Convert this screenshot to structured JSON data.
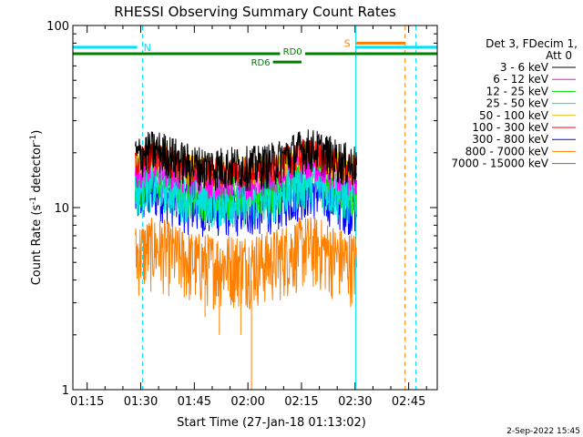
{
  "chart_data": {
    "type": "line",
    "title": "RHESSI Observing Summary Count Rates",
    "xlabel": "Start Time (27-Jan-18 01:13:02)",
    "ylabel_main": "Count Rate (s",
    "ylabel_sup": "-1",
    "ylabel_tail": " detector",
    "ylabel_sup2": "-1",
    "ylabel_close": ")",
    "ylim": [
      1,
      100
    ],
    "yscale": "log",
    "yticks": [
      {
        "value": 1,
        "label": "1"
      },
      {
        "value": 10,
        "label": "10"
      },
      {
        "value": 100,
        "label": "100"
      }
    ],
    "xlim_minutes": [
      71,
      173
    ],
    "xticks": [
      {
        "minutes": 75,
        "label": "01:15"
      },
      {
        "minutes": 90,
        "label": "01:30"
      },
      {
        "minutes": 105,
        "label": "01:45"
      },
      {
        "minutes": 120,
        "label": "02:00"
      },
      {
        "minutes": 135,
        "label": "02:15"
      },
      {
        "minutes": 150,
        "label": "02:30"
      },
      {
        "minutes": 165,
        "label": "02:45"
      }
    ],
    "legend_header": [
      "Det 3, FDecim 1,",
      "Att 0"
    ],
    "series": [
      {
        "name": "3 - 6 keV",
        "color": "#000000",
        "level": 17
      },
      {
        "name": "6 - 12 keV",
        "color": "#ff00ff",
        "level": 14
      },
      {
        "name": "12 - 25 keV",
        "color": "#00e000",
        "level": 12
      },
      {
        "name": "25 - 50 keV",
        "color": "#00e0e0",
        "level": 11
      },
      {
        "name": "50 - 100 keV",
        "color": "#e0c000",
        "level": 16
      },
      {
        "name": "100 - 300 keV",
        "color": "#ff0000",
        "level": 16
      },
      {
        "name": "300 - 800 keV",
        "color": "#0000ff",
        "level": 10
      },
      {
        "name": "800 - 7000 keV",
        "color": "#ff8000",
        "level": 5
      },
      {
        "name": "7000 - 15000 keV",
        "color": "#a06020",
        "level": 6
      }
    ],
    "data_start_minutes": 88.5,
    "data_end_minutes": 150.5,
    "annotations": [
      {
        "label": "N",
        "start": 71,
        "end": 89,
        "y": 76,
        "color": "#00e0ff"
      },
      {
        "label": "S",
        "start": 150.2,
        "end": 164,
        "y": 80,
        "color": "#ff8000"
      },
      {
        "label": "RD0",
        "start": 71,
        "end": 173,
        "y": 70,
        "color": "#008000"
      },
      {
        "label": "RD6",
        "start": 127,
        "end": 135,
        "y": 63,
        "color": "#008000"
      }
    ],
    "vlines": [
      {
        "minutes": 71,
        "style": "solid",
        "color": "#00e0ff"
      },
      {
        "minutes": 90.5,
        "style": "dashed",
        "color": "#00e0ff"
      },
      {
        "minutes": 150.2,
        "style": "solid",
        "color": "#00e0ff"
      },
      {
        "minutes": 164,
        "style": "dashed",
        "color": "#ff8000"
      },
      {
        "minutes": 167,
        "style": "dashed",
        "color": "#00e0ff"
      }
    ]
  },
  "footer_date": "2-Sep-2022 15:45"
}
